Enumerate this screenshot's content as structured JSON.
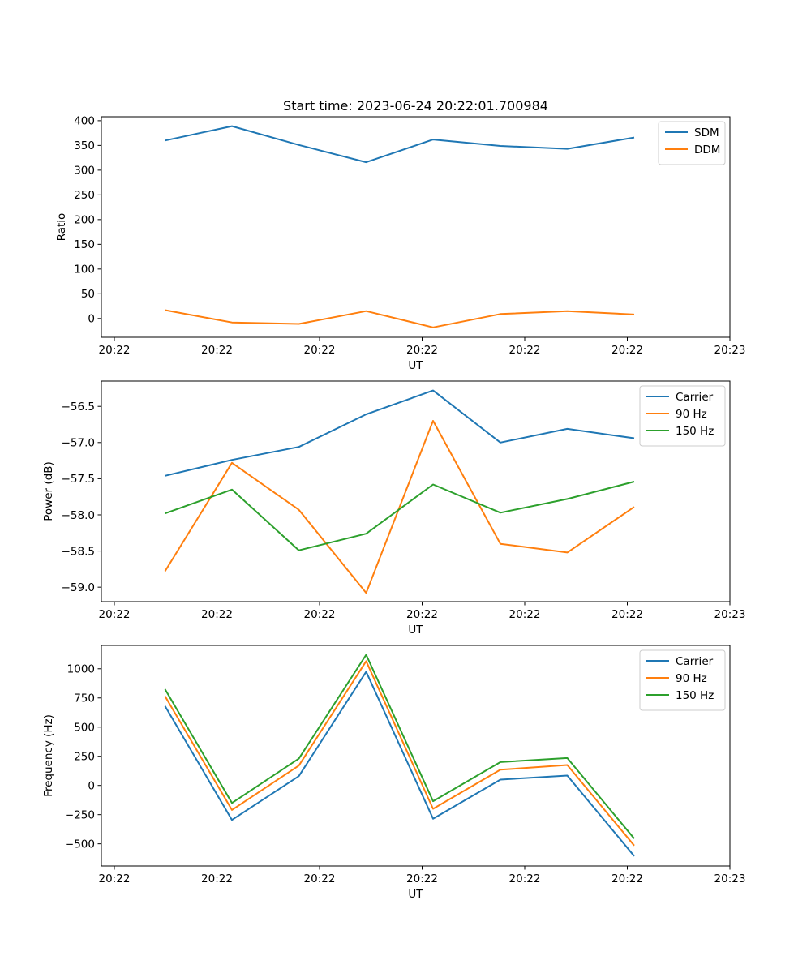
{
  "figure": {
    "title": "Start time: 2023-06-24 20:22:01.700984"
  },
  "chart_data": [
    {
      "type": "line",
      "title": "Start time: 2023-06-24 20:22:01.700984",
      "xlabel": "UT",
      "ylabel": "Ratio",
      "x_tick_labels": [
        "20:22",
        "20:22",
        "20:22",
        "20:22",
        "20:22",
        "20:22",
        "20:23"
      ],
      "y_ticks": [
        0,
        50,
        100,
        150,
        200,
        250,
        300,
        350,
        400
      ],
      "y_tick_labels": [
        "0",
        "50",
        "100",
        "150",
        "200",
        "250",
        "300",
        "350",
        "400"
      ],
      "ylim": [
        -38,
        408
      ],
      "grid": false,
      "legend_position": "top-right",
      "series": [
        {
          "name": "SDM",
          "color": "#1f77b4",
          "values": [
            360,
            389,
            351,
            316,
            362,
            349,
            343,
            366
          ]
        },
        {
          "name": "DDM",
          "color": "#ff7f0e",
          "values": [
            17,
            -8,
            -11,
            15,
            -18,
            9,
            15,
            8
          ]
        }
      ]
    },
    {
      "type": "line",
      "title": "",
      "xlabel": "UT",
      "ylabel": "Power (dB)",
      "x_tick_labels": [
        "20:22",
        "20:22",
        "20:22",
        "20:22",
        "20:22",
        "20:22",
        "20:23"
      ],
      "y_ticks": [
        -59.0,
        -58.5,
        -58.0,
        -57.5,
        -57.0,
        -56.5
      ],
      "y_tick_labels": [
        "−59.0",
        "−58.5",
        "−58.0",
        "−57.5",
        "−57.0",
        "−56.5"
      ],
      "ylim": [
        -59.2,
        -56.15
      ],
      "grid": false,
      "legend_position": "top-right",
      "series": [
        {
          "name": "Carrier",
          "color": "#1f77b4",
          "values": [
            -57.46,
            -57.24,
            -57.06,
            -56.61,
            -56.28,
            -57.0,
            -56.81,
            -56.94
          ]
        },
        {
          "name": "90 Hz",
          "color": "#ff7f0e",
          "values": [
            -58.78,
            -57.28,
            -57.93,
            -59.08,
            -56.7,
            -58.4,
            -58.52,
            -57.89
          ]
        },
        {
          "name": "150 Hz",
          "color": "#2ca02c",
          "values": [
            -57.98,
            -57.65,
            -58.49,
            -58.26,
            -57.58,
            -57.97,
            -57.78,
            -57.54
          ]
        }
      ]
    },
    {
      "type": "line",
      "title": "",
      "xlabel": "UT",
      "ylabel": "Frequency (Hz)",
      "x_tick_labels": [
        "20:22",
        "20:22",
        "20:22",
        "20:22",
        "20:22",
        "20:22",
        "20:23"
      ],
      "y_ticks": [
        -500,
        -250,
        0,
        250,
        500,
        750,
        1000
      ],
      "y_tick_labels": [
        "−500",
        "−250",
        "0",
        "250",
        "500",
        "750",
        "1000"
      ],
      "ylim": [
        -690,
        1200
      ],
      "grid": false,
      "legend_position": "top-right",
      "series": [
        {
          "name": "Carrier",
          "color": "#1f77b4",
          "values": [
            680,
            -295,
            80,
            975,
            -285,
            50,
            85,
            -605
          ]
        },
        {
          "name": "90 Hz",
          "color": "#ff7f0e",
          "values": [
            765,
            -210,
            170,
            1065,
            -200,
            135,
            175,
            -515
          ]
        },
        {
          "name": "150 Hz",
          "color": "#2ca02c",
          "values": [
            825,
            -150,
            230,
            1120,
            -135,
            200,
            235,
            -455
          ]
        }
      ]
    }
  ]
}
